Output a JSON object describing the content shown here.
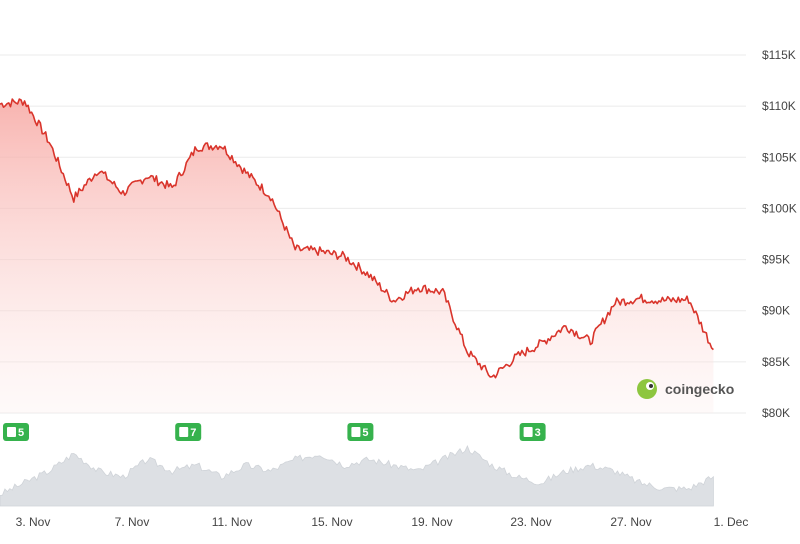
{
  "chart_data": {
    "type": "area",
    "title": "",
    "xlabel": "",
    "ylabel": "",
    "x_ticks": [
      "3. Nov",
      "7. Nov",
      "11. Nov",
      "15. Nov",
      "19. Nov",
      "23. Nov",
      "27. Nov",
      "1. Dec"
    ],
    "y_ticks": [
      "$80K",
      "$85K",
      "$90K",
      "$95K",
      "$100K",
      "$105K",
      "$110K",
      "$115K"
    ],
    "ylim": [
      80000,
      115000
    ],
    "grid": true,
    "line_color": "#d9342b",
    "fill_color": "#f9c7c4",
    "volume_color": "#dde0e4",
    "badge_color": "#36b24d",
    "price_series": {
      "x": [
        "2 Nov",
        "3 Nov",
        "4 Nov",
        "5 Nov",
        "6 Nov",
        "7 Nov",
        "8 Nov",
        "9 Nov",
        "10 Nov",
        "11 Nov",
        "12 Nov",
        "13 Nov",
        "14 Nov",
        "15 Nov",
        "16 Nov",
        "17 Nov",
        "18 Nov",
        "19 Nov",
        "20 Nov",
        "21 Nov",
        "22 Nov",
        "23 Nov",
        "24 Nov",
        "25 Nov",
        "26 Nov",
        "27 Nov",
        "28 Nov",
        "29 Nov",
        "30 Nov",
        "1 Dec"
      ],
      "y": [
        110200,
        110500,
        106500,
        101000,
        103800,
        101500,
        103200,
        102000,
        106000,
        106200,
        103500,
        101200,
        96000,
        95800,
        95300,
        93500,
        91000,
        92300,
        91800,
        86000,
        83500,
        85500,
        86800,
        88500,
        87000,
        90800,
        91200,
        91000,
        91100,
        86200
      ]
    },
    "volume_series": {
      "x": [
        "2 Nov",
        "3 Nov",
        "4 Nov",
        "5 Nov",
        "6 Nov",
        "7 Nov",
        "8 Nov",
        "9 Nov",
        "10 Nov",
        "11 Nov",
        "12 Nov",
        "13 Nov",
        "14 Nov",
        "15 Nov",
        "16 Nov",
        "17 Nov",
        "18 Nov",
        "19 Nov",
        "20 Nov",
        "21 Nov",
        "22 Nov",
        "23 Nov",
        "24 Nov",
        "25 Nov",
        "26 Nov",
        "27 Nov",
        "28 Nov",
        "29 Nov",
        "30 Nov",
        "1 Dec"
      ],
      "y": [
        2,
        4,
        6,
        9,
        6,
        5,
        8,
        6,
        7,
        5,
        7,
        6,
        8,
        9,
        7,
        8,
        7,
        6,
        8,
        10,
        7,
        5,
        4,
        6,
        7,
        6,
        4,
        3,
        3,
        5
      ]
    },
    "news_badges": [
      {
        "date": "2 Nov",
        "count": "5"
      },
      {
        "date": "9 Nov",
        "count": "7"
      },
      {
        "date": "16 Nov",
        "count": "5"
      },
      {
        "date": "23 Nov",
        "count": "3"
      }
    ],
    "watermark": "coingecko"
  }
}
